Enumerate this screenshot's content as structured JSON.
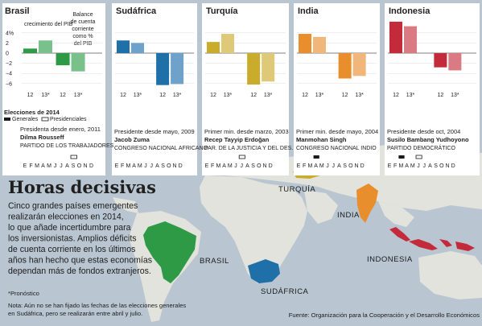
{
  "headline": "Horas decisivas",
  "intro_lines": [
    "Cinco grandes países emergentes",
    "realizarán elecciones en 2014,",
    "lo que añade incertidumbre para",
    "los inversionistas. Amplios déficits",
    "de cuenta corriente en los últimos",
    "años han hecho que estas economías",
    "dependan más de fondos extranjeros."
  ],
  "legend": {
    "title": "Elecciones de 2014",
    "general": "Generales",
    "presidential": "Presidenciales"
  },
  "footnote_mark": "*Pronóstico",
  "note_lines": [
    "Nota: Aún no se han fijado las fechas de las elecciones generales",
    "en Sudáfrica, pero se realizarán entre abril y julio."
  ],
  "source": "Fuente: Organización para la Cooperación y el Desarrollo Económicos",
  "months": [
    "E",
    "F",
    "M",
    "A",
    "M",
    "J",
    "J",
    "A",
    "S",
    "O",
    "N",
    "D"
  ],
  "colors": {
    "Brasil": "#2e9a45",
    "Brasil_light": "#79c08a",
    "Sudáfrica": "#1f6fa8",
    "Sudáfrica_light": "#6ea2cb",
    "Turquía": "#c9ac2b",
    "Turquía_light": "#ddc978",
    "India": "#e98e2c",
    "India_light": "#f0b67a",
    "Indonesia": "#c32b3a",
    "Indonesia_light": "#da7a82"
  },
  "map_labels": {
    "brasil": "BRASIL",
    "sudafrica": "SUDÁFRICA",
    "turquia": "TURQUÍA",
    "india": "INDIA",
    "indonesia": "INDONESIA"
  },
  "chart_data": {
    "type": "bar",
    "ylabel_left": "crecimiento del PIB",
    "ylabel_right": "Balance de cuenta corriente como % del PIB",
    "categories": [
      "12",
      "13*"
    ],
    "yticks": [
      "4%",
      "2",
      "0",
      "−2",
      "−4",
      "−6"
    ],
    "ylim": [
      -7,
      6
    ],
    "panels": [
      {
        "country": "Brasil",
        "growth": [
          0.9,
          2.5
        ],
        "balance": [
          -2.4,
          -3.6
        ],
        "leader_line": "Presidenta desde enero, 2011",
        "leader": "Dilma Rousseff",
        "party": "PARTIDO DE LOS TRABAJADORES"
      },
      {
        "country": "Sudáfrica",
        "growth": [
          2.5,
          2.0
        ],
        "balance": [
          -6.3,
          -6.1
        ],
        "leader_line": "Presidente desde mayo, 2009",
        "leader": "Jacob Zuma",
        "party": "CONGRESO NACIONAL AFRICANO"
      },
      {
        "country": "Turquía",
        "growth": [
          2.2,
          3.8
        ],
        "balance": [
          -6.2,
          -5.6
        ],
        "leader_line": "Primer min. desde marzo, 2003",
        "leader": "Recep Tayyip Erdoğan",
        "party": "PAR. DE LA JUSTICIA Y DEL DES."
      },
      {
        "country": "India",
        "growth": [
          3.8,
          3.2
        ],
        "balance": [
          -5.0,
          -4.5
        ],
        "leader_line": "Primer min. desde mayo, 2004",
        "leader": "Manmohan Singh",
        "party": "CONGRESO NACIONAL INDIO"
      },
      {
        "country": "Indonesia",
        "growth": [
          6.2,
          5.3
        ],
        "balance": [
          -2.8,
          -3.4
        ],
        "leader_line": "Presidente desde oct, 2004",
        "leader": "Susilo Bambang Yudhoyono",
        "party": "PARTIDO DEMOCRÁTICO"
      }
    ],
    "elections": {
      "Brasil": {
        "general": [
          9
        ],
        "presidential": [
          9
        ]
      },
      "Sudáfrica": {
        "general": [],
        "presidential": []
      },
      "Turquía": {
        "general": [],
        "presidential": [
          7
        ]
      },
      "India": {
        "general": [
          4
        ],
        "presidential": []
      },
      "Indonesia": {
        "general": [
          3
        ],
        "presidential": [
          6
        ]
      }
    }
  }
}
